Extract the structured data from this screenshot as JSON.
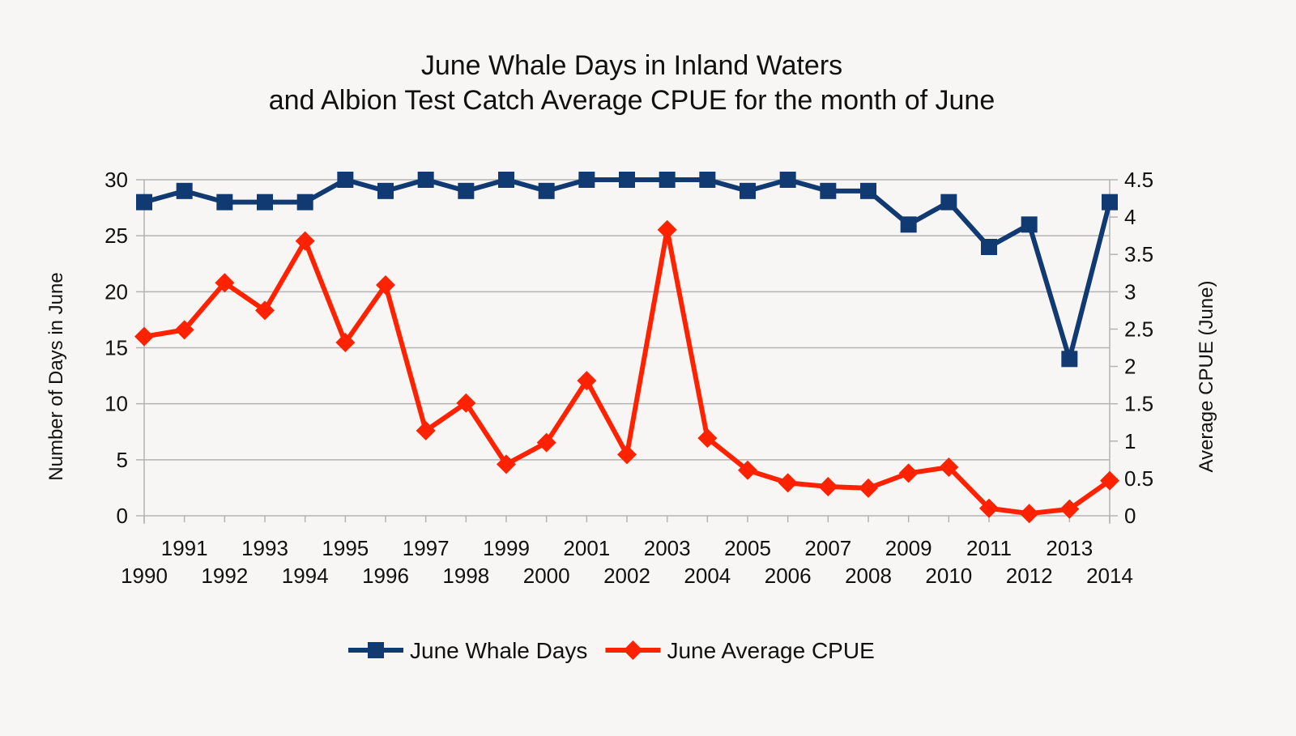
{
  "chart_data": {
    "type": "line",
    "title": [
      "June Whale Days in Inland Waters",
      "and Albion Test Catch Average CPUE for the month of June"
    ],
    "ylabel": "Number of Days in June",
    "y2label": "Average CPUE (June)",
    "x": [
      1990,
      1991,
      1992,
      1993,
      1994,
      1995,
      1996,
      1997,
      1998,
      1999,
      2000,
      2001,
      2002,
      2003,
      2004,
      2005,
      2006,
      2007,
      2008,
      2009,
      2010,
      2011,
      2012,
      2013,
      2014
    ],
    "ylim": [
      0,
      30
    ],
    "y_ticks": [
      "0",
      "5",
      "10",
      "15",
      "20",
      "25",
      "30"
    ],
    "y2lim": [
      0,
      4.5
    ],
    "y2_ticks": [
      "0",
      "0.5",
      "1",
      "1.5",
      "2",
      "2.5",
      "3",
      "3.5",
      "4",
      "4.5"
    ],
    "grid": "horizontal",
    "legend": "bottom",
    "series": [
      {
        "name": "June Whale Days",
        "axis": "left",
        "color": "#123a72",
        "marker": "square",
        "values": [
          28,
          29,
          28,
          28,
          28,
          30,
          29,
          30,
          29,
          30,
          29,
          30,
          30,
          30,
          30,
          29,
          30,
          29,
          29,
          26,
          28,
          24,
          26,
          14,
          28
        ]
      },
      {
        "name": "June Average CPUE",
        "axis": "right",
        "color": "#ff2200",
        "marker": "diamond",
        "values": [
          2.4,
          2.49,
          3.12,
          2.75,
          3.68,
          2.32,
          3.09,
          1.14,
          1.51,
          0.69,
          0.98,
          1.81,
          0.82,
          3.83,
          1.04,
          0.61,
          0.44,
          0.39,
          0.37,
          0.57,
          0.65,
          0.1,
          0.03,
          0.09,
          0.47
        ]
      }
    ]
  }
}
